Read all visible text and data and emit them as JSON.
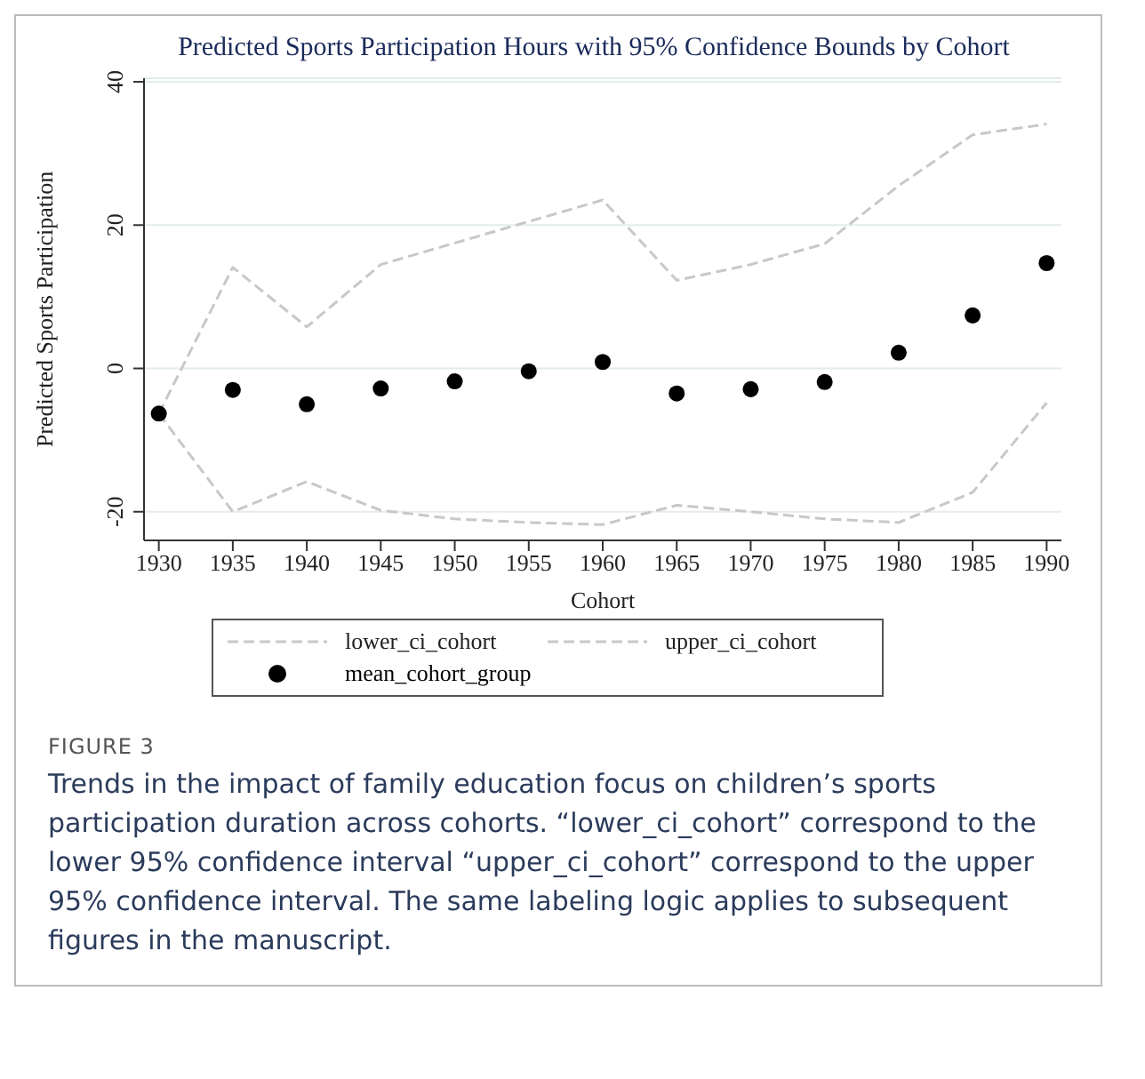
{
  "chart_data": {
    "type": "line",
    "title": "Predicted Sports Participation Hours with 95% Confidence Bounds by Cohort",
    "xlabel": "Cohort",
    "ylabel": "Predicted Sports Participation",
    "x": [
      1930,
      1935,
      1940,
      1945,
      1950,
      1955,
      1960,
      1965,
      1970,
      1975,
      1980,
      1985,
      1990
    ],
    "series": [
      {
        "name": "lower_ci_cohort",
        "line_style": "dashed",
        "marker": "none",
        "color": "#c8c8c8",
        "values": [
          -6.3,
          -20,
          -15.8,
          -19.8,
          -21,
          -21.5,
          -21.8,
          -19.1,
          -20,
          -21,
          -21.5,
          -17.3,
          -4.8
        ]
      },
      {
        "name": "upper_ci_cohort",
        "line_style": "dashed",
        "marker": "none",
        "color": "#c8c8c8",
        "values": [
          -6.3,
          14.1,
          5.8,
          14.5,
          17.5,
          20.5,
          23.5,
          12.3,
          14.5,
          17.4,
          25.5,
          32.6,
          34.1
        ]
      },
      {
        "name": "mean_cohort_group",
        "type": "scatter",
        "marker": "circle",
        "color": "#000000",
        "values": [
          -6.3,
          -3.0,
          -5.0,
          -2.8,
          -1.8,
          -0.4,
          0.9,
          -3.5,
          -2.9,
          -1.9,
          2.2,
          7.4,
          14.7
        ]
      }
    ],
    "xlim": [
      1929,
      1991
    ],
    "xticks": [
      1930,
      1935,
      1940,
      1945,
      1950,
      1955,
      1960,
      1965,
      1970,
      1975,
      1980,
      1985,
      1990
    ],
    "ylim": [
      -24,
      40.5
    ],
    "yticks": [
      -20,
      0,
      20,
      40
    ],
    "grid": "y",
    "legend": "bottom",
    "annotations": [
      "FIGURE 3",
      "Trends in the impact of family education focus on children’s sports participation duration across cohorts. “lower_ci_cohort” correspond to the lower 95% confidence interval “upper_ci_cohort” correspond to the upper 95% confidence interval. The same labeling logic applies to subsequent figures in the manuscript."
    ]
  }
}
